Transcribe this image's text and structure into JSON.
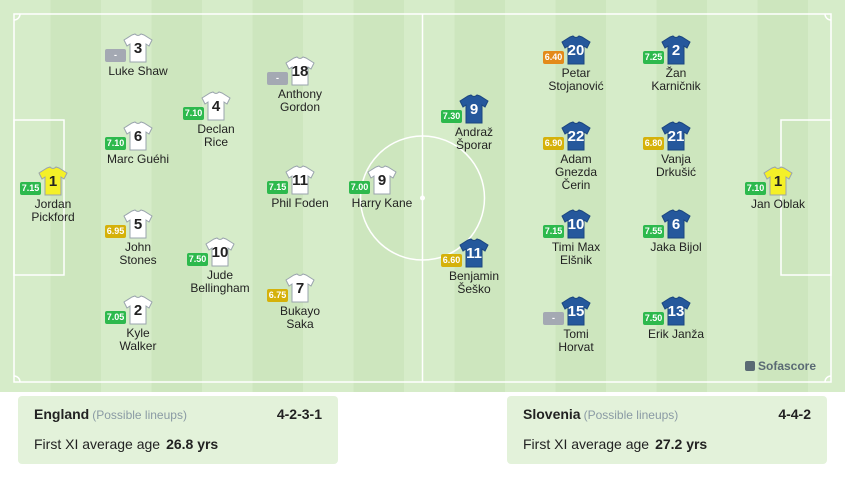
{
  "colors": {
    "rating_green": "#2db94d",
    "rating_yellow": "#d5b10a",
    "rating_orange": "#e38a1a",
    "rating_grey": "#a4a9b3",
    "england_shirt": "#ffffff",
    "england_gk_shirt": "#f4f028",
    "slovenia_shirt": "#25589c",
    "slovenia_gk_shirt": "#f4f028"
  },
  "players": [
    {
      "team": "england",
      "number": "1",
      "name1": "Jordan",
      "name2": "Pickford",
      "rating": "7.15",
      "rating_color": "green",
      "gk": true
    },
    {
      "team": "england",
      "number": "3",
      "name1": "Luke Shaw",
      "name2": "",
      "rating": "-",
      "rating_color": "grey",
      "gk": false
    },
    {
      "team": "england",
      "number": "6",
      "name1": "Marc Guéhi",
      "name2": "",
      "rating": "7.10",
      "rating_color": "green",
      "gk": false
    },
    {
      "team": "england",
      "number": "5",
      "name1": "John",
      "name2": "Stones",
      "rating": "6.95",
      "rating_color": "yellow",
      "gk": false
    },
    {
      "team": "england",
      "number": "2",
      "name1": "Kyle",
      "name2": "Walker",
      "rating": "7.05",
      "rating_color": "green",
      "gk": false
    },
    {
      "team": "england",
      "number": "4",
      "name1": "Declan",
      "name2": "Rice",
      "rating": "7.10",
      "rating_color": "green",
      "gk": false
    },
    {
      "team": "england",
      "number": "10",
      "name1": "Jude",
      "name2": "Bellingham",
      "rating": "7.50",
      "rating_color": "green",
      "gk": false
    },
    {
      "team": "england",
      "number": "18",
      "name1": "Anthony",
      "name2": "Gordon",
      "rating": "-",
      "rating_color": "grey",
      "gk": false
    },
    {
      "team": "england",
      "number": "11",
      "name1": "Phil Foden",
      "name2": "",
      "rating": "7.15",
      "rating_color": "green",
      "gk": false
    },
    {
      "team": "england",
      "number": "7",
      "name1": "Bukayo",
      "name2": "Saka",
      "rating": "6.75",
      "rating_color": "yellow",
      "gk": false
    },
    {
      "team": "england",
      "number": "9",
      "name1": "Harry Kane",
      "name2": "",
      "rating": "7.00",
      "rating_color": "green",
      "gk": false
    },
    {
      "team": "slovenia",
      "number": "9",
      "name1": "Andraž",
      "name2": "Šporar",
      "rating": "7.30",
      "rating_color": "green",
      "gk": false
    },
    {
      "team": "slovenia",
      "number": "11",
      "name1": "Benjamin",
      "name2": "Šeško",
      "rating": "6.60",
      "rating_color": "yellow",
      "gk": false
    },
    {
      "team": "slovenia",
      "number": "20",
      "name1": "Petar",
      "name2": "Stojanović",
      "rating": "6.40",
      "rating_color": "orange",
      "gk": false
    },
    {
      "team": "slovenia",
      "number": "22",
      "name1": "Adam",
      "name2": "Gnezda",
      "name3": "Čerin",
      "rating": "6.90",
      "rating_color": "yellow",
      "gk": false
    },
    {
      "team": "slovenia",
      "number": "10",
      "name1": "Timi Max",
      "name2": "Elšnik",
      "rating": "7.15",
      "rating_color": "green",
      "gk": false
    },
    {
      "team": "slovenia",
      "number": "15",
      "name1": "Tomi",
      "name2": "Horvat",
      "rating": "-",
      "rating_color": "grey",
      "gk": false
    },
    {
      "team": "slovenia",
      "number": "2",
      "name1": "Žan",
      "name2": "Karničnik",
      "rating": "7.25",
      "rating_color": "green",
      "gk": false
    },
    {
      "team": "slovenia",
      "number": "21",
      "name1": "Vanja",
      "name2": "Drkušić",
      "rating": "6.80",
      "rating_color": "yellow",
      "gk": false
    },
    {
      "team": "slovenia",
      "number": "6",
      "name1": "Jaka Bijol",
      "name2": "",
      "rating": "7.55",
      "rating_color": "green",
      "gk": false
    },
    {
      "team": "slovenia",
      "number": "13",
      "name1": "Erik Janža",
      "name2": "",
      "rating": "7.50",
      "rating_color": "green",
      "gk": false
    },
    {
      "team": "slovenia",
      "number": "1",
      "name1": "Jan Oblak",
      "name2": "",
      "rating": "7.10",
      "rating_color": "green",
      "gk": true
    }
  ],
  "brand": {
    "logo_text": "Sofascore"
  },
  "england": {
    "name": "England",
    "lineup_note": "(Possible lineups)",
    "formation": "4-2-3-1",
    "age_label": "First XI average age",
    "age_value": "26.8 yrs"
  },
  "slovenia": {
    "name": "Slovenia",
    "lineup_note": "(Possible lineups)",
    "formation": "4-4-2",
    "age_label": "First XI average age",
    "age_value": "27.2 yrs"
  }
}
